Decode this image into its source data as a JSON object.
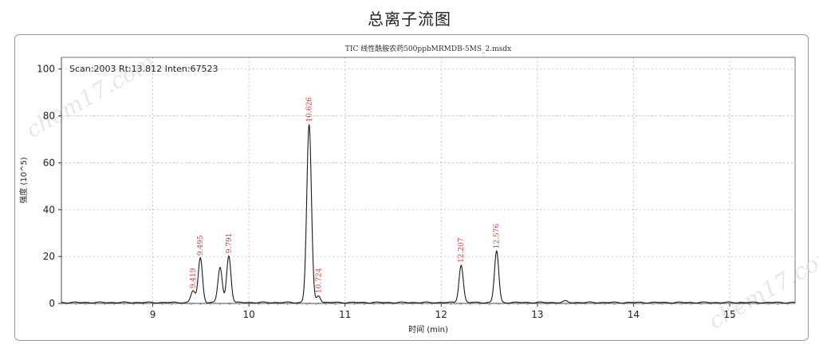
{
  "page_title": "总离子流图",
  "watermark": "chem17.com",
  "chart_data": {
    "type": "line",
    "title": "TIC 线性酰胺农药500ppbMRMDB-5MS_2.msdx",
    "info": "Scan:2003  Rt:13.812  Inten:67523",
    "xlabel": "时间 (min)",
    "ylabel": "强度 (10^5)",
    "xlim": [
      8.05,
      15.68
    ],
    "ylim": [
      0,
      105
    ],
    "x_ticks": [
      9,
      10,
      11,
      12,
      13,
      14,
      15
    ],
    "y_ticks": [
      0,
      20,
      40,
      60,
      80,
      100
    ],
    "grid": true,
    "colors": {
      "trace": "#1a1a1a",
      "peak_label": "#d23b3b",
      "grid": "#b8b8b8"
    },
    "peaks": [
      {
        "rt": 9.419,
        "height": 5,
        "width": 0.022,
        "label": "9.419"
      },
      {
        "rt": 9.495,
        "height": 19,
        "width": 0.022,
        "label": "9.495"
      },
      {
        "rt": 9.7,
        "height": 15,
        "width": 0.022,
        "label": ""
      },
      {
        "rt": 9.791,
        "height": 20,
        "width": 0.022,
        "label": "9.791"
      },
      {
        "rt": 10.626,
        "height": 76,
        "width": 0.024,
        "label": "10.626"
      },
      {
        "rt": 10.724,
        "height": 3,
        "width": 0.02,
        "label": "10.724"
      },
      {
        "rt": 12.207,
        "height": 16,
        "width": 0.022,
        "label": "12.207"
      },
      {
        "rt": 12.576,
        "height": 22,
        "width": 0.022,
        "label": "12.576"
      },
      {
        "rt": 13.29,
        "height": 0.6,
        "width": 0.02,
        "label": ""
      }
    ],
    "baseline": 0.4
  }
}
